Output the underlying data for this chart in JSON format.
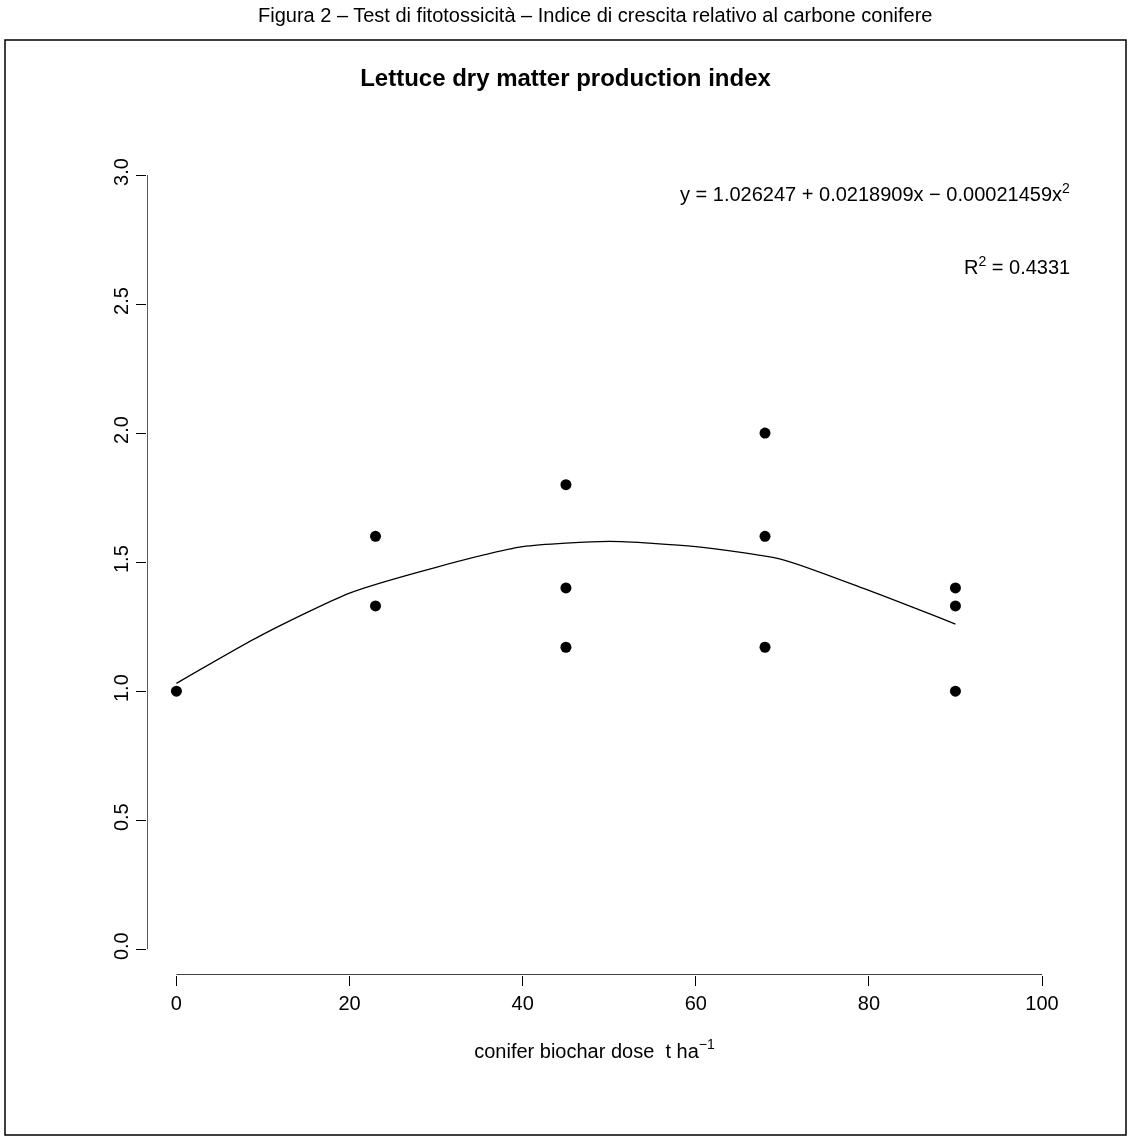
{
  "chart_data": {
    "type": "scatter",
    "title": "Lettuce dry matter production index",
    "xlabel": "conifer biochar dose  t ha$^{−1}$",
    "annotations": [
      "Figura 2 – Test di fitotossicità – Indice di crescita relativo al carbone conifere",
      "y = 1.026247 + 0.0218909x − 0.00021459x$^{2}$",
      "R$^{2}$ = 0.4331"
    ],
    "series": [
      {
        "color": "#000000",
        "marker": "circle",
        "x": [
          0,
          23,
          23,
          45,
          45,
          45,
          68,
          68,
          68,
          90,
          90,
          90
        ],
        "values": [
          1.0,
          1.6,
          1.33,
          1.8,
          1.4,
          1.17,
          2.0,
          1.6,
          1.17,
          1.4,
          1.33,
          1.0
        ]
      },
      {
        "type": "line",
        "color": "#000000",
        "marker": "none",
        "line_style": "solid",
        "x": [
          0,
          10,
          20,
          30,
          40,
          50,
          60,
          70,
          80,
          90
        ],
        "values": [
          1.03,
          1.22,
          1.38,
          1.48,
          1.56,
          1.58,
          1.56,
          1.51,
          1.39,
          1.26
        ]
      }
    ],
    "xlim": [
      -3.4,
      100
    ],
    "ylim": [
      -0.1,
      3
    ],
    "xticks": [
      0,
      20,
      40,
      60,
      80,
      100
    ],
    "yticks": [
      {
        "value": 0,
        "label": "0.0"
      },
      0.5,
      {
        "value": 1,
        "label": "1.0"
      },
      1.5,
      {
        "value": 2,
        "label": "2.0"
      },
      2.5,
      {
        "value": 3,
        "label": "3.0"
      }
    ]
  }
}
